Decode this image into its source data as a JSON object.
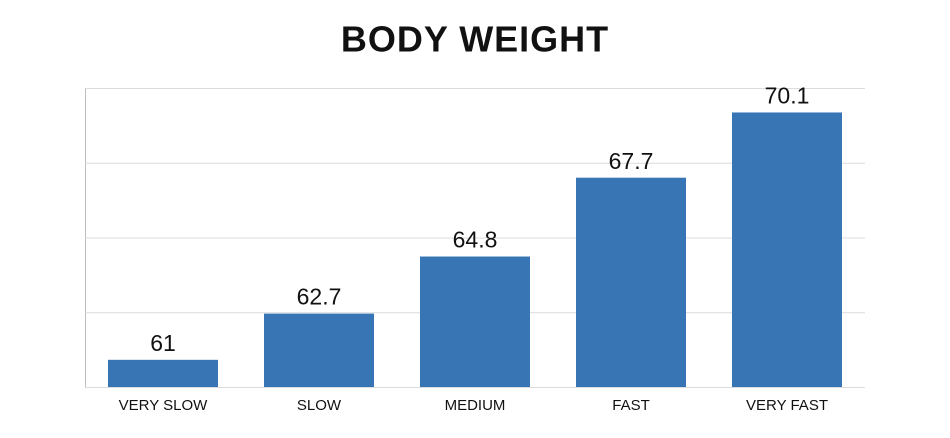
{
  "chart_data": {
    "type": "bar",
    "title": "BODY WEIGHT",
    "categories": [
      "VERY SLOW",
      "SLOW",
      "MEDIUM",
      "FAST",
      "VERY FAST"
    ],
    "values": [
      61,
      62.7,
      64.8,
      67.7,
      70.1
    ],
    "color": "#3875b5",
    "ylim": [
      60,
      71
    ],
    "yticks": [
      60,
      62.75,
      65.5,
      68.25,
      71
    ],
    "grid": true,
    "show_ytick_labels": false
  }
}
